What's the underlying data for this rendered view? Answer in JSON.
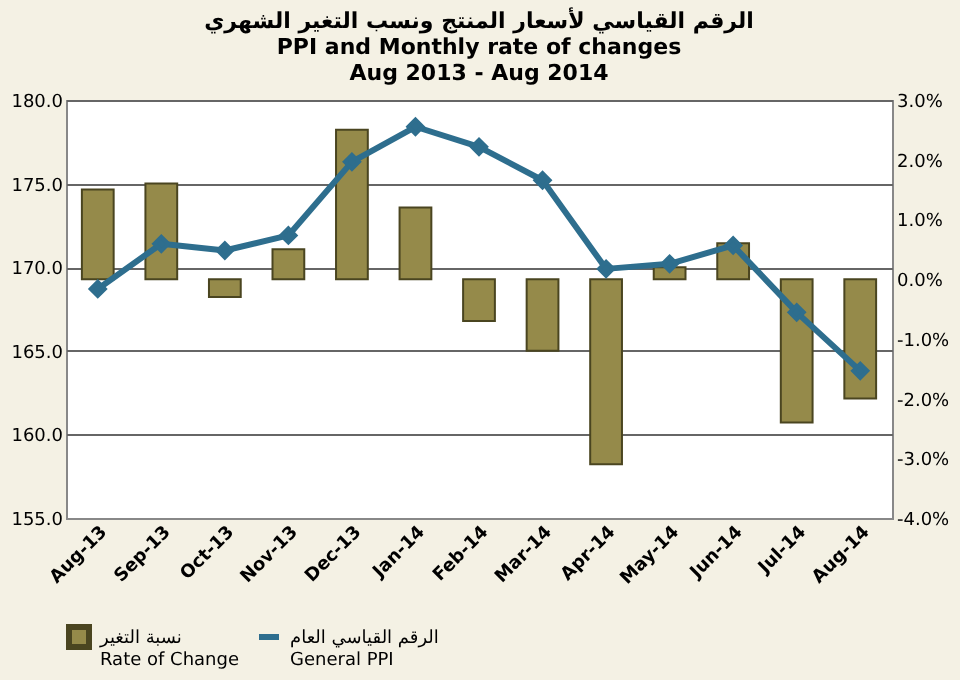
{
  "chart_data": {
    "type": "bar",
    "title": [
      "الرقم القياسي لأسعار المنتج ونسب التغير الشهري",
      "PPI and  Monthly rate of changes",
      "Aug 2013 - Aug 2014"
    ],
    "categories": [
      "Aug-13",
      "Sep-13",
      "Oct-13",
      "Nov-13",
      "Dec-13",
      "Jan-14",
      "Feb-14",
      "Mar-14",
      "Apr-14",
      "May-14",
      "Jun-14",
      "Jul-14",
      "Aug-14"
    ],
    "series": [
      {
        "name": "نسبة التغير\nRate of Change",
        "axis": "y2",
        "color": "#958a4a",
        "values": [
          1.5,
          1.6,
          -0.3,
          0.5,
          2.5,
          1.2,
          -0.7,
          -1.2,
          -3.1,
          0.2,
          0.6,
          -2.4,
          -2.0
        ]
      },
      {
        "name": "الرقم القياسي العام\nGeneral  PPI",
        "type": "line",
        "axis": "y",
        "color": "#2e6e8e",
        "marker": "diamond",
        "line_style": "solid",
        "values": [
          168.7,
          171.4,
          171.0,
          171.9,
          176.3,
          178.4,
          177.2,
          175.2,
          169.9,
          170.2,
          171.3,
          167.3,
          163.8
        ]
      }
    ],
    "ylim": [
      155,
      180
    ],
    "yticks": [
      {
        "value": 155,
        "label": "155.0"
      },
      {
        "value": 160,
        "label": "160.0"
      },
      {
        "value": 165,
        "label": "165.0"
      },
      {
        "value": 170,
        "label": "170.0"
      },
      {
        "value": 175,
        "label": "175.0"
      },
      {
        "value": 180,
        "label": "180.0"
      }
    ],
    "y2lim": [
      -4,
      3
    ],
    "y2ticks": [
      {
        "value": -4,
        "label": "-4.0%"
      },
      {
        "value": -3,
        "label": "-3.0%"
      },
      {
        "value": -2,
        "label": "-2.0%"
      },
      {
        "value": -1,
        "label": "-1.0%"
      },
      {
        "value": 0,
        "label": "0.0%"
      },
      {
        "value": 1,
        "label": "1.0%"
      },
      {
        "value": 2,
        "label": "2.0%"
      },
      {
        "value": 3,
        "label": "3.0%"
      }
    ],
    "grid": "y",
    "legend": "bottom"
  }
}
